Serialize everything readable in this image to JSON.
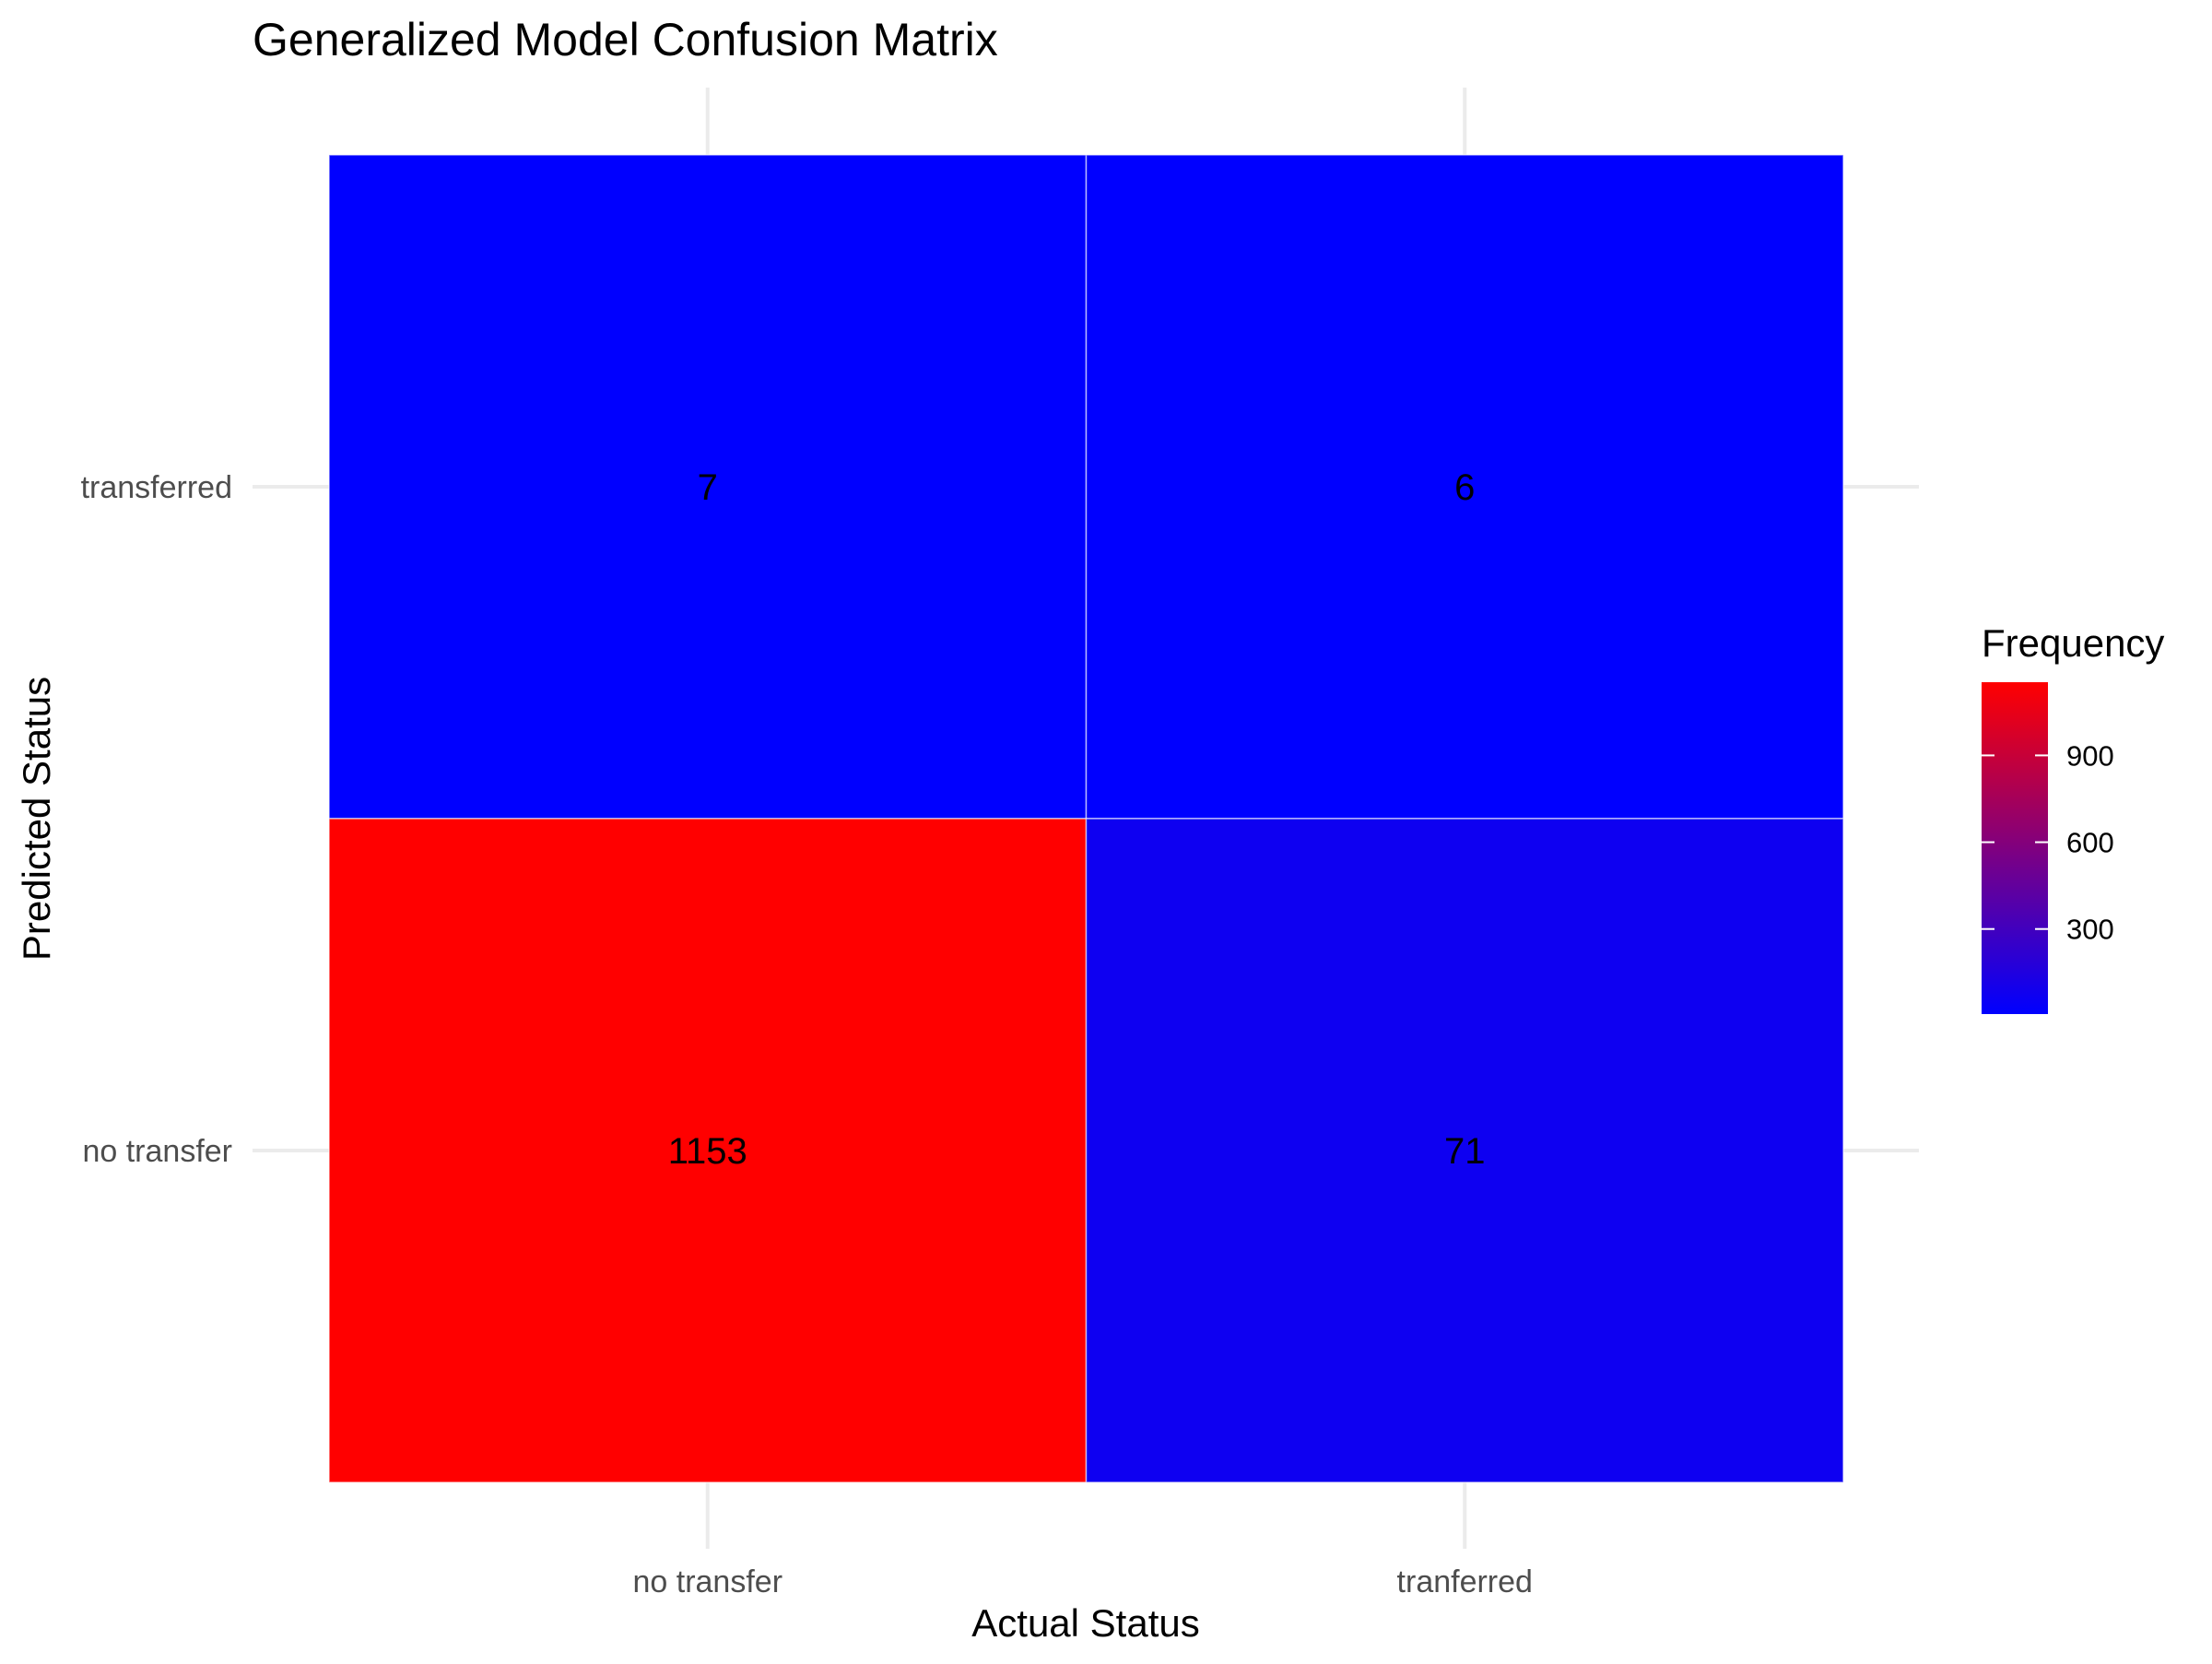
{
  "chart_data": {
    "type": "heatmap",
    "title": "Generalized Model Confusion Matrix",
    "xlabel": "Actual Status",
    "ylabel": "Predicted Status",
    "x_categories": [
      "no transfer",
      "tranferred"
    ],
    "y_categories": [
      "no transfer",
      "transferred"
    ],
    "cells": [
      {
        "x": "no transfer",
        "y": "transferred",
        "value": 7
      },
      {
        "x": "tranferred",
        "y": "transferred",
        "value": 6
      },
      {
        "x": "no transfer",
        "y": "no transfer",
        "value": 1153
      },
      {
        "x": "tranferred",
        "y": "no transfer",
        "value": 71
      }
    ],
    "color_scale": {
      "low": "#0000FF",
      "high": "#FF0000"
    },
    "legend": {
      "title": "Frequency",
      "placement": "right",
      "ticks": [
        300,
        600,
        900
      ]
    },
    "grid": true
  }
}
